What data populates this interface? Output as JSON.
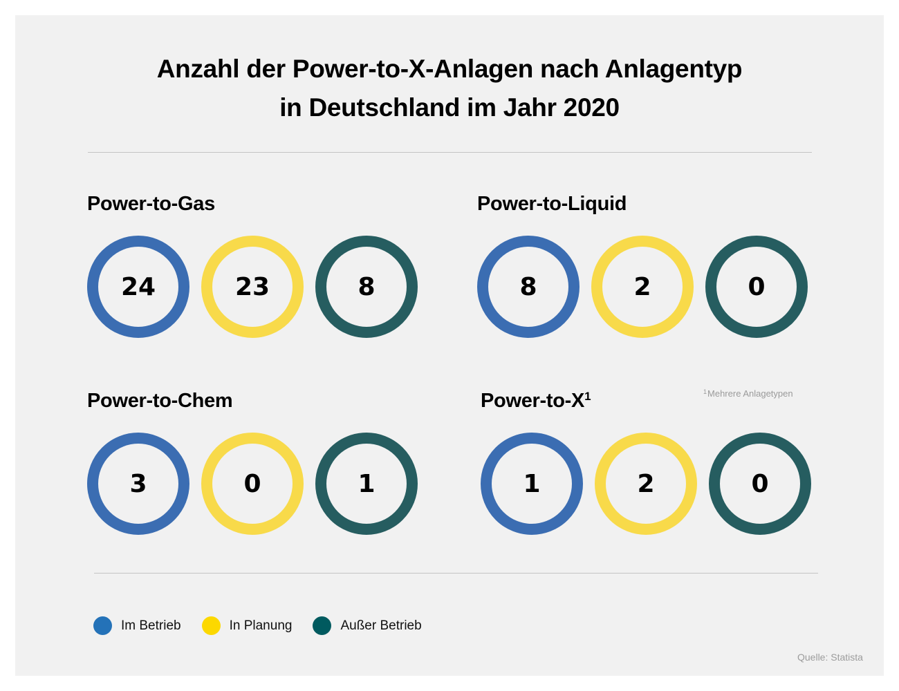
{
  "chart_data": {
    "type": "table",
    "title": "Anzahl der Power-to-X-Anlagen nach Anlagentyp in Deutschland im Jahr 2020",
    "title_lines": [
      "Anzahl der Power-to-X-Anlagen nach Anlagentyp",
      "in Deutschland im Jahr 2020"
    ],
    "legend": [
      {
        "label": "Im Betrieb",
        "color": "#2472b8"
      },
      {
        "label": "In Planung",
        "color": "#fcd800"
      },
      {
        "label": "Außer Betrieb",
        "color": "#005a5f"
      }
    ],
    "ring_colors": [
      "#3b6db2",
      "#f8da4a",
      "#265d60"
    ],
    "groups": [
      {
        "name": "Power-to-Gas",
        "footnote_mark": "",
        "values": [
          24,
          23,
          8
        ]
      },
      {
        "name": "Power-to-Liquid",
        "footnote_mark": "",
        "values": [
          8,
          2,
          0
        ]
      },
      {
        "name": "Power-to-Chem",
        "footnote_mark": "",
        "values": [
          3,
          0,
          1
        ]
      },
      {
        "name": "Power-to-X",
        "footnote_mark": "1",
        "values": [
          1,
          2,
          0
        ]
      }
    ],
    "footnote": {
      "mark": "1",
      "text": "Mehrere Anlagetypen"
    },
    "source": "Quelle: Statista"
  }
}
